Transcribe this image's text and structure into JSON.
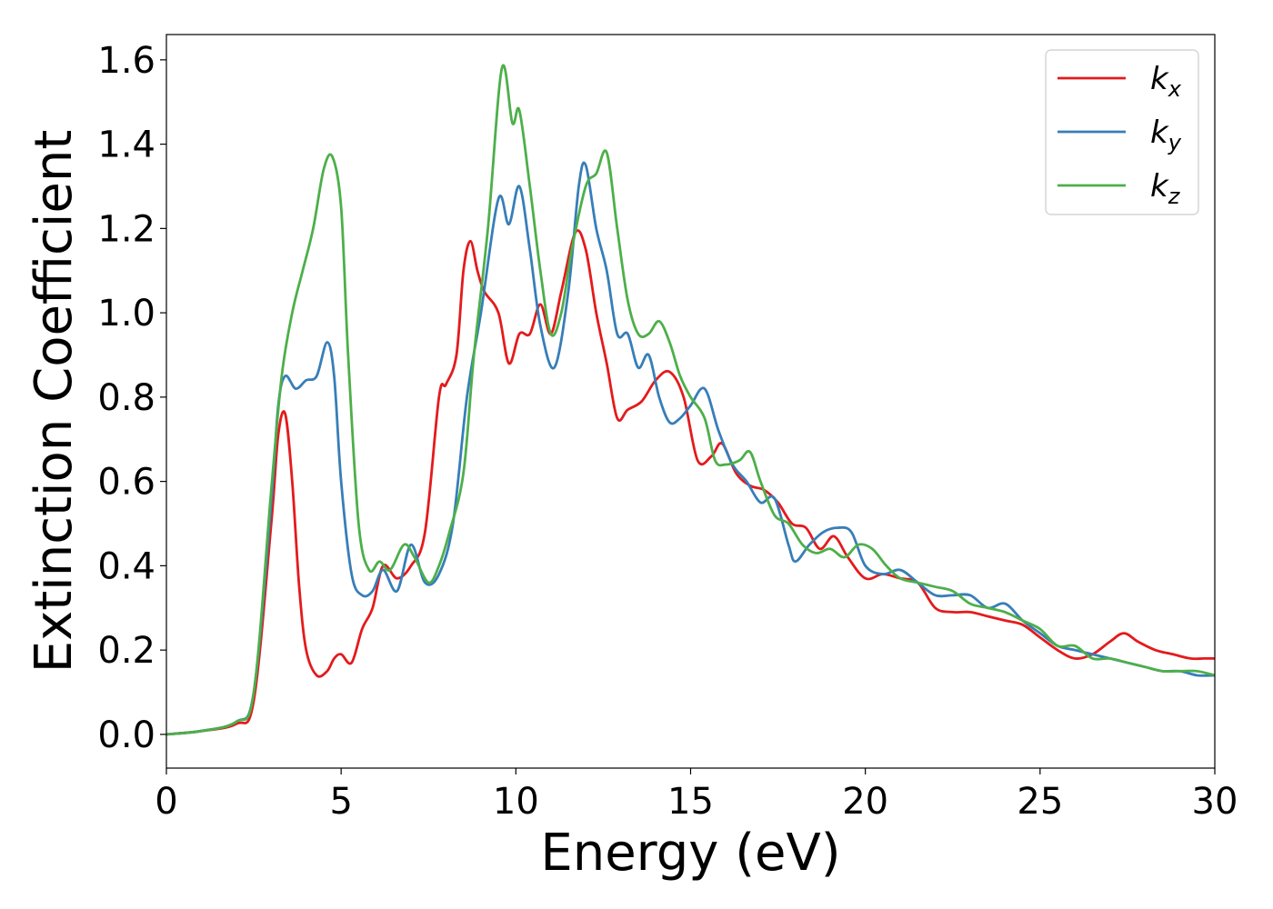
{
  "chart_data": {
    "type": "line",
    "xlabel": "Energy (eV)",
    "ylabel": "Extinction Coefficient",
    "xlim": [
      0,
      30
    ],
    "ylim": [
      -0.08,
      1.66
    ],
    "xticks": [
      0,
      5,
      10,
      15,
      20,
      25,
      30
    ],
    "xtick_labels": [
      "0",
      "5",
      "10",
      "15",
      "20",
      "25",
      "30"
    ],
    "yticks": [
      0.0,
      0.2,
      0.4,
      0.6,
      0.8,
      1.0,
      1.2,
      1.4,
      1.6
    ],
    "ytick_labels": [
      "0.0",
      "0.2",
      "0.4",
      "0.6",
      "0.8",
      "1.0",
      "1.2",
      "1.4",
      "1.6"
    ],
    "grid": false,
    "legend": {
      "location": "top-right",
      "entries": [
        {
          "base": "k",
          "sub": "x",
          "color": "#e41a1c"
        },
        {
          "base": "k",
          "sub": "y",
          "color": "#377eb8"
        },
        {
          "base": "k",
          "sub": "z",
          "color": "#4daf4a"
        }
      ]
    },
    "series": [
      {
        "name": "kx",
        "color": "#e41a1c",
        "x": [
          0,
          1,
          2,
          2.5,
          3.0,
          3.2,
          3.4,
          3.6,
          3.8,
          4.0,
          4.3,
          4.6,
          4.8,
          5.0,
          5.3,
          5.6,
          5.9,
          6.2,
          6.6,
          7.0,
          7.4,
          7.8,
          8.0,
          8.3,
          8.5,
          8.7,
          8.9,
          9.1,
          9.5,
          9.8,
          10.1,
          10.4,
          10.7,
          11.0,
          11.3,
          11.7,
          12.0,
          12.3,
          12.6,
          12.9,
          13.2,
          13.6,
          14.0,
          14.4,
          14.8,
          15.2,
          15.6,
          15.9,
          16.3,
          16.7,
          17.1,
          17.5,
          17.9,
          18.3,
          18.7,
          19.1,
          19.5,
          20.0,
          20.5,
          21.0,
          21.5,
          22.0,
          22.5,
          23.0,
          23.5,
          24.0,
          24.5,
          25.0,
          25.5,
          26.0,
          26.5,
          27.0,
          27.4,
          27.8,
          28.3,
          28.8,
          29.3,
          29.7,
          30
        ],
        "y": [
          0.0,
          0.008,
          0.025,
          0.08,
          0.5,
          0.71,
          0.76,
          0.6,
          0.35,
          0.2,
          0.14,
          0.15,
          0.18,
          0.19,
          0.17,
          0.25,
          0.3,
          0.4,
          0.37,
          0.4,
          0.48,
          0.8,
          0.83,
          0.9,
          1.1,
          1.17,
          1.1,
          1.05,
          1.0,
          0.88,
          0.95,
          0.95,
          1.02,
          0.95,
          1.05,
          1.19,
          1.15,
          1.0,
          0.88,
          0.75,
          0.77,
          0.79,
          0.84,
          0.86,
          0.8,
          0.65,
          0.66,
          0.69,
          0.62,
          0.59,
          0.58,
          0.55,
          0.5,
          0.49,
          0.44,
          0.47,
          0.42,
          0.37,
          0.38,
          0.37,
          0.36,
          0.3,
          0.29,
          0.29,
          0.28,
          0.27,
          0.26,
          0.23,
          0.2,
          0.18,
          0.19,
          0.22,
          0.24,
          0.22,
          0.2,
          0.19,
          0.18,
          0.18,
          0.18
        ]
      },
      {
        "name": "ky",
        "color": "#377eb8",
        "x": [
          0,
          1,
          2,
          2.5,
          3.0,
          3.2,
          3.4,
          3.7,
          4.0,
          4.3,
          4.6,
          4.8,
          5.0,
          5.3,
          5.6,
          5.9,
          6.2,
          6.6,
          7.0,
          7.4,
          7.8,
          8.2,
          8.6,
          9.0,
          9.5,
          9.8,
          10.1,
          10.4,
          10.7,
          11.1,
          11.5,
          11.8,
          12.0,
          12.3,
          12.6,
          12.9,
          13.2,
          13.5,
          13.8,
          14.1,
          14.4,
          14.7,
          15.0,
          15.4,
          15.8,
          16.2,
          16.6,
          17.0,
          17.4,
          17.8,
          18.0,
          18.4,
          18.8,
          19.2,
          19.6,
          20.0,
          20.5,
          21.0,
          21.5,
          22.0,
          22.5,
          23.0,
          23.5,
          24.0,
          24.5,
          25.0,
          25.5,
          26.0,
          26.5,
          27.0,
          27.5,
          28.0,
          28.5,
          29.0,
          29.5,
          30
        ],
        "y": [
          0.0,
          0.008,
          0.03,
          0.1,
          0.55,
          0.78,
          0.85,
          0.82,
          0.84,
          0.85,
          0.93,
          0.85,
          0.6,
          0.38,
          0.33,
          0.34,
          0.39,
          0.34,
          0.45,
          0.36,
          0.38,
          0.5,
          0.8,
          1.0,
          1.27,
          1.21,
          1.3,
          1.15,
          0.97,
          0.87,
          1.05,
          1.3,
          1.35,
          1.2,
          1.1,
          0.95,
          0.95,
          0.87,
          0.9,
          0.8,
          0.74,
          0.75,
          0.78,
          0.82,
          0.72,
          0.64,
          0.6,
          0.55,
          0.56,
          0.45,
          0.41,
          0.45,
          0.48,
          0.49,
          0.48,
          0.4,
          0.38,
          0.39,
          0.36,
          0.33,
          0.33,
          0.33,
          0.3,
          0.31,
          0.27,
          0.24,
          0.21,
          0.2,
          0.19,
          0.18,
          0.17,
          0.16,
          0.15,
          0.15,
          0.14,
          0.14
        ]
      },
      {
        "name": "kz",
        "color": "#4daf4a",
        "x": [
          0,
          1,
          2,
          2.5,
          3.0,
          3.3,
          3.6,
          3.9,
          4.2,
          4.5,
          4.75,
          5.0,
          5.2,
          5.5,
          5.8,
          6.1,
          6.4,
          6.8,
          7.1,
          7.5,
          7.8,
          8.1,
          8.5,
          8.8,
          9.2,
          9.6,
          9.9,
          10.1,
          10.4,
          10.7,
          11.0,
          11.3,
          11.6,
          12.0,
          12.3,
          12.6,
          12.9,
          13.2,
          13.5,
          13.8,
          14.1,
          14.4,
          14.7,
          15.0,
          15.4,
          15.7,
          16.0,
          16.4,
          16.7,
          17.0,
          17.4,
          17.8,
          18.2,
          18.6,
          19.0,
          19.4,
          19.8,
          20.2,
          20.6,
          21.0,
          21.5,
          22.0,
          22.5,
          23.0,
          23.5,
          24.0,
          24.5,
          25.0,
          25.5,
          26.0,
          26.5,
          27.0,
          27.5,
          28.0,
          28.5,
          29.0,
          29.5,
          30
        ],
        "y": [
          0.0,
          0.008,
          0.03,
          0.1,
          0.58,
          0.85,
          1.0,
          1.1,
          1.2,
          1.34,
          1.37,
          1.25,
          0.9,
          0.5,
          0.39,
          0.41,
          0.39,
          0.45,
          0.42,
          0.36,
          0.4,
          0.48,
          0.62,
          0.9,
          1.2,
          1.58,
          1.45,
          1.48,
          1.3,
          1.1,
          0.95,
          1.0,
          1.15,
          1.3,
          1.33,
          1.38,
          1.2,
          1.03,
          0.95,
          0.95,
          0.98,
          0.93,
          0.85,
          0.8,
          0.75,
          0.65,
          0.64,
          0.65,
          0.67,
          0.6,
          0.52,
          0.5,
          0.45,
          0.43,
          0.44,
          0.42,
          0.45,
          0.44,
          0.4,
          0.37,
          0.36,
          0.35,
          0.34,
          0.31,
          0.3,
          0.29,
          0.27,
          0.25,
          0.21,
          0.21,
          0.18,
          0.18,
          0.17,
          0.16,
          0.15,
          0.15,
          0.15,
          0.14
        ]
      }
    ]
  }
}
